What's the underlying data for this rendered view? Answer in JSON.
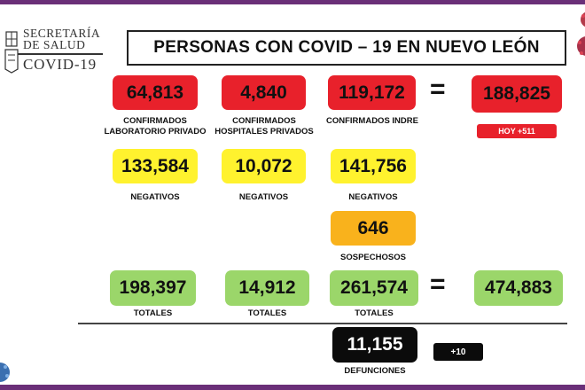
{
  "header": {
    "org_line1": "SECRETARÍA",
    "org_line2": "DE SALUD",
    "org_line3": "COVID-19",
    "title": "PERSONAS CON COVID – 19 EN NUEVO LEÓN"
  },
  "confirmados": {
    "lab_privado": {
      "value": "64,813",
      "label1": "CONFIRMADOS",
      "label2": "LABORATORIO PRIVADO"
    },
    "hosp_privados": {
      "value": "4,840",
      "label1": "CONFIRMADOS",
      "label2": "HOSPITALES PRIVADOS"
    },
    "indre": {
      "value": "119,172",
      "label1": "CONFIRMADOS INDRE"
    },
    "equals": "=",
    "total": {
      "value": "188,825",
      "badge": "HOY +511"
    }
  },
  "negativos": {
    "lab_privado": {
      "value": "133,584",
      "label": "NEGATIVOS"
    },
    "hosp_privados": {
      "value": "10,072",
      "label": "NEGATIVOS"
    },
    "indre": {
      "value": "141,756",
      "label": "NEGATIVOS"
    }
  },
  "sospechosos": {
    "value": "646",
    "label": "SOSPECHOSOS"
  },
  "totales": {
    "lab_privado": {
      "value": "198,397",
      "label": "TOTALES"
    },
    "hosp_privados": {
      "value": "14,912",
      "label": "TOTALES"
    },
    "indre": {
      "value": "261,574",
      "label": "TOTALES"
    },
    "equals": "=",
    "grand_total": {
      "value": "474,883"
    }
  },
  "defunciones": {
    "value": "11,155",
    "label": "DEFUNCIONES",
    "badge": "+10"
  },
  "colors": {
    "red": "#e8212b",
    "yellow": "#fff22e",
    "orange": "#f9b21c",
    "green": "#9bd66a",
    "black": "#0b0b0b",
    "frame": "#6a2f78"
  }
}
